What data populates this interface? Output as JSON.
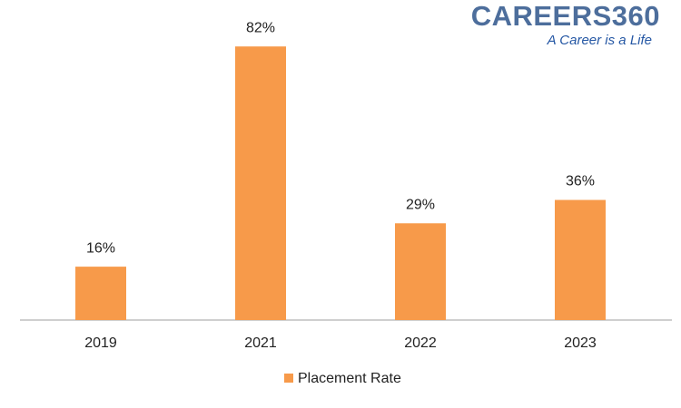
{
  "chart_data": {
    "type": "bar",
    "categories": [
      "2019",
      "2021",
      "2022",
      "2023"
    ],
    "series": [
      {
        "name": "Placement Rate",
        "color": "#f79a4a",
        "values": [
          16,
          82,
          29,
          36
        ],
        "value_labels": [
          "16%",
          "82%",
          "29%",
          "36%"
        ]
      }
    ],
    "legend": "bottom"
  },
  "logo": {
    "title": "CAREERS360",
    "tagline": "A Career is a Life"
  }
}
